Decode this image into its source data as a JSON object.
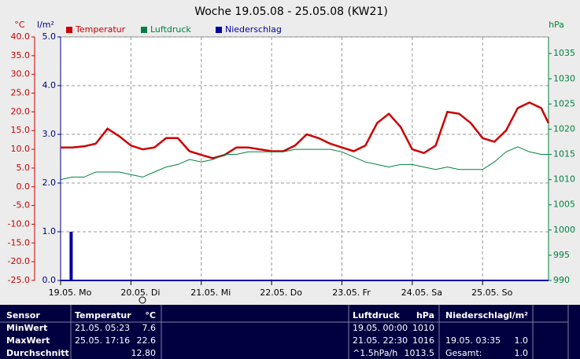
{
  "chart_data": {
    "type": "line",
    "title": "Woche 19.05.08 - 25.05.08 (KW21)",
    "y_unit": "°C",
    "y2_unit": "l/m²",
    "y3_unit": "hPa",
    "xlim": [
      0,
      166.5
    ],
    "xticks": [
      {
        "value": 0,
        "label": "19.05. Mo"
      },
      {
        "value": 24,
        "label": "20.05. Di"
      },
      {
        "value": 48,
        "label": "21.05. Mi"
      },
      {
        "value": 72,
        "label": "22.05. Do"
      },
      {
        "value": 96,
        "label": "23.05. Fr"
      },
      {
        "value": 120,
        "label": "24.05. Sa"
      },
      {
        "value": 144,
        "label": "25.05. So"
      }
    ],
    "ylim": [
      -25,
      40
    ],
    "yticks": [
      {
        "value": 40,
        "label": "40.0"
      },
      {
        "value": 35,
        "label": "35.0"
      },
      {
        "value": 30,
        "label": "30.0"
      },
      {
        "value": 25,
        "label": "25.0"
      },
      {
        "value": 20,
        "label": "20.0"
      },
      {
        "value": 15,
        "label": "15.0"
      },
      {
        "value": 10,
        "label": "10.0"
      },
      {
        "value": 5,
        "label": "5.0"
      },
      {
        "value": 0,
        "label": "0.0"
      },
      {
        "value": -5,
        "label": "-5.0"
      },
      {
        "value": -10,
        "label": "-10.0"
      },
      {
        "value": -15,
        "label": "-15.0"
      },
      {
        "value": -20,
        "label": "-20.0"
      },
      {
        "value": -25,
        "label": "-25.0"
      }
    ],
    "y2lim": [
      0,
      5
    ],
    "y2ticks": [
      {
        "value": 5,
        "label": "5.0"
      },
      {
        "value": 4,
        "label": "4.0"
      },
      {
        "value": 3,
        "label": "3.0"
      },
      {
        "value": 2,
        "label": "2.0"
      },
      {
        "value": 1,
        "label": "1.0"
      },
      {
        "value": 0,
        "label": "0.0"
      }
    ],
    "y3lim": [
      990,
      1038.3
    ],
    "y3ticks": [
      1035,
      1030,
      1025,
      1020,
      1015,
      1010,
      1005,
      1000,
      995,
      990
    ],
    "grid": true,
    "series": [
      {
        "name": "Temperatur",
        "color": "#cc0000",
        "axis": "y",
        "type": "line",
        "x": [
          0,
          4,
          8,
          12,
          16,
          20,
          24,
          28,
          32,
          36,
          40,
          44,
          48,
          52,
          56,
          60,
          64,
          68,
          72,
          76,
          80,
          84,
          88,
          92,
          96,
          100,
          104,
          108,
          112,
          116,
          120,
          124,
          128,
          132,
          136,
          140,
          144,
          148,
          152,
          156,
          160,
          164,
          166.5
        ],
        "values": [
          10.5,
          10.5,
          10.8,
          11.5,
          15.5,
          13.5,
          11,
          10,
          10.5,
          13,
          13,
          9.5,
          8.5,
          7.6,
          8.5,
          10.5,
          10.5,
          10,
          9.5,
          9.5,
          11,
          14,
          13,
          11.5,
          10.5,
          9.5,
          11,
          17,
          19.5,
          16,
          10,
          9,
          11,
          20,
          19.5,
          17,
          13,
          12,
          15,
          21,
          22.5,
          21,
          17
        ]
      },
      {
        "name": "Luftdruck",
        "color": "#008040",
        "axis": "y3",
        "type": "line",
        "x": [
          0,
          4,
          8,
          12,
          16,
          20,
          24,
          28,
          32,
          36,
          40,
          44,
          48,
          52,
          56,
          60,
          64,
          68,
          72,
          76,
          80,
          84,
          88,
          92,
          96,
          100,
          104,
          108,
          112,
          116,
          120,
          124,
          128,
          132,
          136,
          140,
          144,
          148,
          152,
          156,
          160,
          164,
          166.5
        ],
        "values": [
          1010,
          1010.5,
          1010.5,
          1011.5,
          1011.5,
          1011.5,
          1011,
          1010.5,
          1011.5,
          1012.5,
          1013,
          1014,
          1013.5,
          1014,
          1015,
          1015,
          1015.5,
          1015.5,
          1015.5,
          1015.5,
          1016,
          1016,
          1016,
          1016,
          1015.5,
          1014.5,
          1013.5,
          1013,
          1012.5,
          1013,
          1013,
          1012.5,
          1012,
          1012.5,
          1012,
          1012,
          1012,
          1013.5,
          1015.5,
          1016.5,
          1015.5,
          1015,
          1015
        ]
      },
      {
        "name": "Niederschlag",
        "color": "#0000a0",
        "axis": "y2",
        "type": "bar",
        "x": [
          3.6
        ],
        "values": [
          1.0
        ]
      }
    ]
  },
  "table": {
    "header": [
      "Sensor",
      "Temperatur",
      "°C",
      "Luftdruck",
      "hPa",
      "Niederschlag",
      "l/m²"
    ],
    "rows": [
      [
        "MinWert",
        "21.05. 05:23",
        "7.6",
        "19.05. 00:00",
        "1010",
        null,
        null
      ],
      [
        "MaxWert",
        "25.05. 17:16",
        "22.6",
        "21.05. 22:30",
        "1016",
        "19.05. 03:35",
        "1.0"
      ],
      [
        "Durchschnitt",
        null,
        "12.80",
        "^1.5hPa/h",
        "1013.5",
        "Gesamt:",
        "1.0"
      ]
    ]
  }
}
